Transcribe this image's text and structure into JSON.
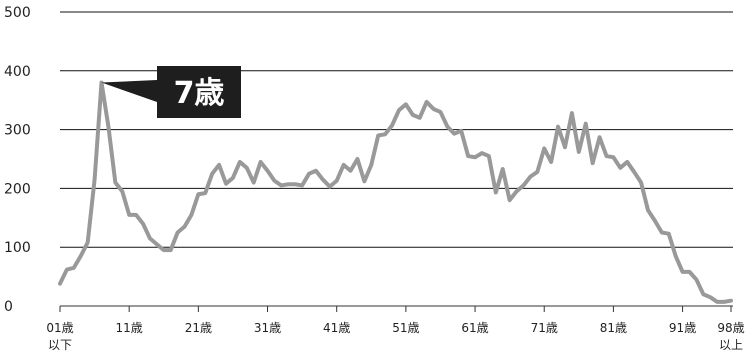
{
  "chart_data": {
    "type": "line",
    "title": "",
    "xlabel": "",
    "ylabel": "",
    "ylim": [
      0,
      500
    ],
    "yticks": [
      0,
      100,
      200,
      300,
      400,
      500
    ],
    "grid": true,
    "series_color": "#999999",
    "xtick_labels": [
      {
        "index": 0,
        "lines": [
          "01歳",
          "以下"
        ]
      },
      {
        "index": 10,
        "lines": [
          "11歳"
        ]
      },
      {
        "index": 20,
        "lines": [
          "21歳"
        ]
      },
      {
        "index": 30,
        "lines": [
          "31歳"
        ]
      },
      {
        "index": 40,
        "lines": [
          "41歳"
        ]
      },
      {
        "index": 50,
        "lines": [
          "51歳"
        ]
      },
      {
        "index": 60,
        "lines": [
          "61歳"
        ]
      },
      {
        "index": 70,
        "lines": [
          "71歳"
        ]
      },
      {
        "index": 80,
        "lines": [
          "81歳"
        ]
      },
      {
        "index": 90,
        "lines": [
          "91歳"
        ]
      },
      {
        "index": 97,
        "lines": [
          "98歳",
          "以上"
        ]
      }
    ],
    "annotation": {
      "label": "7歳",
      "index": 6,
      "value": 380
    },
    "values": [
      38,
      62,
      65,
      85,
      108,
      215,
      380,
      305,
      210,
      195,
      155,
      155,
      140,
      115,
      105,
      95,
      95,
      125,
      135,
      155,
      190,
      192,
      225,
      240,
      208,
      218,
      245,
      235,
      210,
      245,
      230,
      213,
      205,
      207,
      207,
      205,
      225,
      230,
      215,
      203,
      213,
      240,
      230,
      250,
      212,
      240,
      290,
      292,
      307,
      333,
      343,
      325,
      320,
      347,
      335,
      330,
      305,
      293,
      298,
      255,
      253,
      260,
      255,
      193,
      233,
      180,
      195,
      205,
      220,
      228,
      268,
      245,
      305,
      270,
      328,
      262,
      310,
      243,
      287,
      255,
      253,
      235,
      245,
      228,
      210,
      163,
      145,
      125,
      123,
      85,
      58,
      58,
      45,
      20,
      15,
      7,
      7,
      9
    ]
  }
}
